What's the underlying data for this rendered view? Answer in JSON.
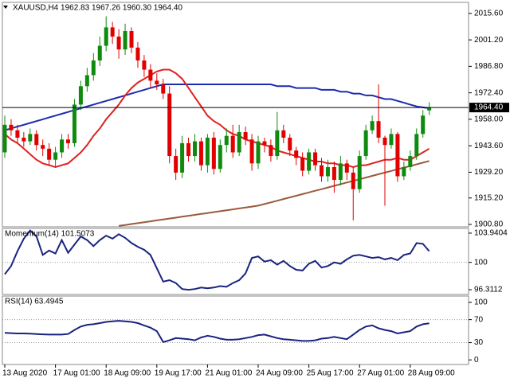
{
  "chart_data": [
    {
      "type": "candlestick",
      "title": "XAUUSD,H4  1962.83 1967.26 1960.30 1964.40",
      "categories": [
        "13 Aug 2020",
        null,
        null,
        null,
        null,
        null,
        null,
        null,
        "17 Aug 01:00",
        null,
        null,
        null,
        null,
        null,
        null,
        null,
        "18 Aug 09:00",
        null,
        null,
        null,
        null,
        null,
        null,
        null,
        "19 Aug 17:00",
        null,
        null,
        null,
        null,
        null,
        null,
        null,
        "21 Aug 01:00",
        null,
        null,
        null,
        null,
        null,
        null,
        null,
        "24 Aug 09:00",
        null,
        null,
        null,
        null,
        null,
        null,
        null,
        "25 Aug 17:00",
        null,
        null,
        null,
        null,
        null,
        null,
        null,
        "27 Aug 01:00",
        null,
        null,
        null,
        null,
        null,
        null,
        null,
        "28 Aug 09:00",
        null,
        null,
        null
      ],
      "open": [
        1940,
        1955,
        1952,
        1948,
        1946,
        1950,
        1944,
        1942,
        1936,
        1940,
        1947,
        1945,
        1966,
        1976,
        1982,
        1990,
        1998,
        2008,
        2003,
        1996,
        2006,
        1997,
        1990,
        1985,
        1979,
        1977,
        1972,
        1938,
        1929,
        1945,
        1938,
        1946,
        1933,
        1948,
        1931,
        1944,
        1949,
        1940,
        1951,
        1947,
        1934,
        1946,
        1944,
        1938,
        1952,
        1948,
        1941,
        1937,
        1930,
        1940,
        1933,
        1927,
        1932,
        1925,
        1934,
        1929,
        1920,
        1938,
        1952,
        1957,
        1948,
        1944,
        1950,
        1927,
        1932,
        1938,
        1950,
        1962.83
      ],
      "high": [
        1960,
        1958,
        1955,
        1951,
        1953,
        1952,
        1947,
        1945,
        1943,
        1950,
        1950,
        1969,
        1979,
        1986,
        1994,
        2003,
        2014,
        2011,
        2007,
        2010,
        2008,
        2000,
        1993,
        1988,
        1983,
        1980,
        1976,
        1942,
        1949,
        1948,
        1950,
        1948,
        1950,
        1951,
        1947,
        1953,
        1955,
        1955,
        1954,
        1950,
        1949,
        1948,
        1947,
        1962,
        1955,
        1950,
        1943,
        1940,
        1942,
        1942,
        1937,
        1936,
        1935,
        1938,
        1936,
        1932,
        1941,
        1955,
        1960,
        1977,
        1949,
        1953,
        1951,
        1935,
        1941,
        1953,
        1963,
        1967.26
      ],
      "low": [
        1937,
        1949,
        1945,
        1943,
        1944,
        1941,
        1938,
        1933,
        1932,
        1937,
        1942,
        1943,
        1963,
        1973,
        1979,
        1987,
        1995,
        1999,
        1991,
        1993,
        1994,
        1986,
        1981,
        1975,
        1974,
        1969,
        1934,
        1925,
        1926,
        1935,
        1935,
        1930,
        1929,
        1928,
        1929,
        1940,
        1937,
        1938,
        1944,
        1930,
        1931,
        1940,
        1935,
        1936,
        1945,
        1938,
        1933,
        1927,
        1928,
        1930,
        1924,
        1924,
        1918,
        1922,
        1925,
        1903,
        1918,
        1936,
        1950,
        1945,
        1911,
        1942,
        1924,
        1925,
        1930,
        1936,
        1948,
        1960.3
      ],
      "close": [
        1955,
        1952,
        1948,
        1946,
        1950,
        1944,
        1942,
        1936,
        1940,
        1947,
        1945,
        1966,
        1976,
        1982,
        1990,
        1998,
        2008,
        2003,
        1996,
        2006,
        1997,
        1990,
        1985,
        1979,
        1977,
        1972,
        1938,
        1929,
        1945,
        1938,
        1946,
        1933,
        1948,
        1931,
        1944,
        1949,
        1940,
        1951,
        1947,
        1934,
        1946,
        1944,
        1938,
        1952,
        1948,
        1941,
        1937,
        1930,
        1940,
        1933,
        1927,
        1932,
        1925,
        1934,
        1929,
        1920,
        1938,
        1952,
        1957,
        1948,
        1944,
        1950,
        1927,
        1932,
        1938,
        1950,
        1960,
        1964.4
      ],
      "up_color": "#0f8a0f",
      "down_color": "#e00000",
      "series": [
        {
          "color": "#1c2bb0",
          "values": [
            1952,
            1953,
            1954,
            1955,
            1956,
            1957,
            1958,
            1959,
            1960,
            1961,
            1962,
            1963,
            1964,
            1965,
            1966,
            1967,
            1968,
            1969,
            1970,
            1971,
            1972,
            1973,
            1974,
            1975,
            1976,
            1977,
            1977,
            1977,
            1977,
            1977,
            1977,
            1977,
            1977,
            1977,
            1977,
            1977,
            1977,
            1977,
            1977,
            1977,
            1977,
            1977,
            1977,
            1976,
            1976,
            1976,
            1975,
            1975,
            1975,
            1975,
            1974,
            1974,
            1974,
            1973,
            1973,
            1972,
            1972,
            1971,
            1971,
            1970,
            1969,
            1969,
            1968,
            1967,
            1966,
            1965,
            1964.5,
            1964
          ]
        },
        {
          "color": "#e02020",
          "values": [
            1950,
            1947,
            1945,
            1942,
            1939,
            1936,
            1934,
            1933,
            1932,
            1933,
            1934,
            1937,
            1940,
            1944,
            1949,
            1953,
            1958,
            1962,
            1966,
            1971,
            1975,
            1978,
            1980,
            1982,
            1984,
            1985,
            1985,
            1983,
            1980,
            1975,
            1970,
            1965,
            1960,
            1957,
            1955,
            1952,
            1950,
            1949,
            1947,
            1946,
            1945,
            1944,
            1943,
            1941,
            1940,
            1939,
            1938,
            1937,
            1936,
            1935,
            1935,
            1934,
            1934,
            1933,
            1933,
            1932,
            1933,
            1933,
            1934,
            1935,
            1936,
            1936,
            1937,
            1936,
            1936,
            1938,
            1940,
            1942
          ]
        },
        {
          "color": "#9a5b3c",
          "values": [
            null,
            null,
            null,
            null,
            null,
            null,
            null,
            null,
            null,
            null,
            null,
            null,
            null,
            null,
            null,
            null,
            null,
            null,
            1900,
            1900.5,
            1901,
            1901.5,
            1902,
            1902.5,
            1903,
            1903.5,
            1904,
            1904.5,
            1905,
            1905.5,
            1906,
            1906.5,
            1907,
            1907.5,
            1908,
            1908.5,
            1909,
            1909.5,
            1910,
            1910.5,
            1911,
            1911.9,
            1912.8,
            1913.7,
            1914.6,
            1915.5,
            1916.4,
            1917.3,
            1918.2,
            1919.1,
            1920,
            1920.9,
            1921.8,
            1922.7,
            1923.6,
            1924.5,
            1925.4,
            1926.3,
            1927.2,
            1928.1,
            1929,
            1929.9,
            1930.8,
            1931.7,
            1932.6,
            1933.5,
            1934.4,
            1935.3
          ]
        }
      ],
      "ylim": [
        1899.5,
        2021.6
      ],
      "yticks": [
        {
          "value": 2015.6,
          "label": "2015.60"
        },
        {
          "value": 2001.2,
          "label": "2001.20"
        },
        {
          "value": 1986.8,
          "label": "1986.80"
        },
        {
          "value": 1972.4,
          "label": "1972.40"
        },
        {
          "value": 1958,
          "label": "1958.00"
        },
        {
          "value": 1943.6,
          "label": "1943.60"
        },
        {
          "value": 1929.2,
          "label": "1929.20"
        },
        {
          "value": 1915.2,
          "label": "1915.20"
        },
        {
          "value": 1900.8,
          "label": "1900.80"
        }
      ],
      "last_price": {
        "value": 1964.4,
        "label": "1964.40"
      }
    },
    {
      "type": "line",
      "title": "Momentum(14) 101.5073",
      "series": [
        {
          "color": "#1a237e",
          "values": [
            98.4,
            99.5,
            101.5,
            103.2,
            104.3,
            103.5,
            101.0,
            101.6,
            101.2,
            103.0,
            101.3,
            102.4,
            103.5,
            103.0,
            102.2,
            103.0,
            103.6,
            103.2,
            103.8,
            103.3,
            102.6,
            102.1,
            101.7,
            101.0,
            99.2,
            97.4,
            97.6,
            97.2,
            96.4,
            96.3,
            96.4,
            96.6,
            96.5,
            96.6,
            96.8,
            96.7,
            97.2,
            97.6,
            98.5,
            100.6,
            100.8,
            100.1,
            100.3,
            99.7,
            100.2,
            99.5,
            99.0,
            98.9,
            99.8,
            100.2,
            99.3,
            99.5,
            100.0,
            99.8,
            100.4,
            100.9,
            101.0,
            100.8,
            100.6,
            100.7,
            100.4,
            100.6,
            100.3,
            101.0,
            101.2,
            102.6,
            102.5,
            101.5073
          ]
        }
      ],
      "ylim": [
        95.67,
        104.58
      ],
      "yticks": [
        103.9404,
        100,
        96.3112
      ],
      "levels": [
        100
      ]
    },
    {
      "type": "line",
      "title": "RSI(14) 63.4945",
      "series": [
        {
          "color": "#1a237e",
          "values": [
            47,
            46.5,
            46,
            46,
            45.5,
            45,
            44.5,
            44,
            44,
            44,
            45,
            52,
            58,
            61,
            62,
            64,
            66,
            67,
            68,
            67,
            66,
            64,
            60,
            56,
            50,
            31,
            34,
            38,
            37,
            36,
            34,
            39,
            42,
            40,
            37,
            35,
            35,
            36,
            38,
            40,
            43,
            44,
            41,
            38,
            36,
            35,
            34,
            33,
            33,
            34,
            37,
            38,
            40,
            38,
            36,
            44,
            52,
            58,
            60,
            55,
            52,
            50,
            46,
            48,
            50,
            58,
            62,
            63.4945
          ]
        }
      ],
      "ylim": [
        -8,
        111
      ],
      "yticks": [
        100,
        70,
        30,
        0
      ],
      "levels": [
        70,
        30
      ]
    }
  ]
}
